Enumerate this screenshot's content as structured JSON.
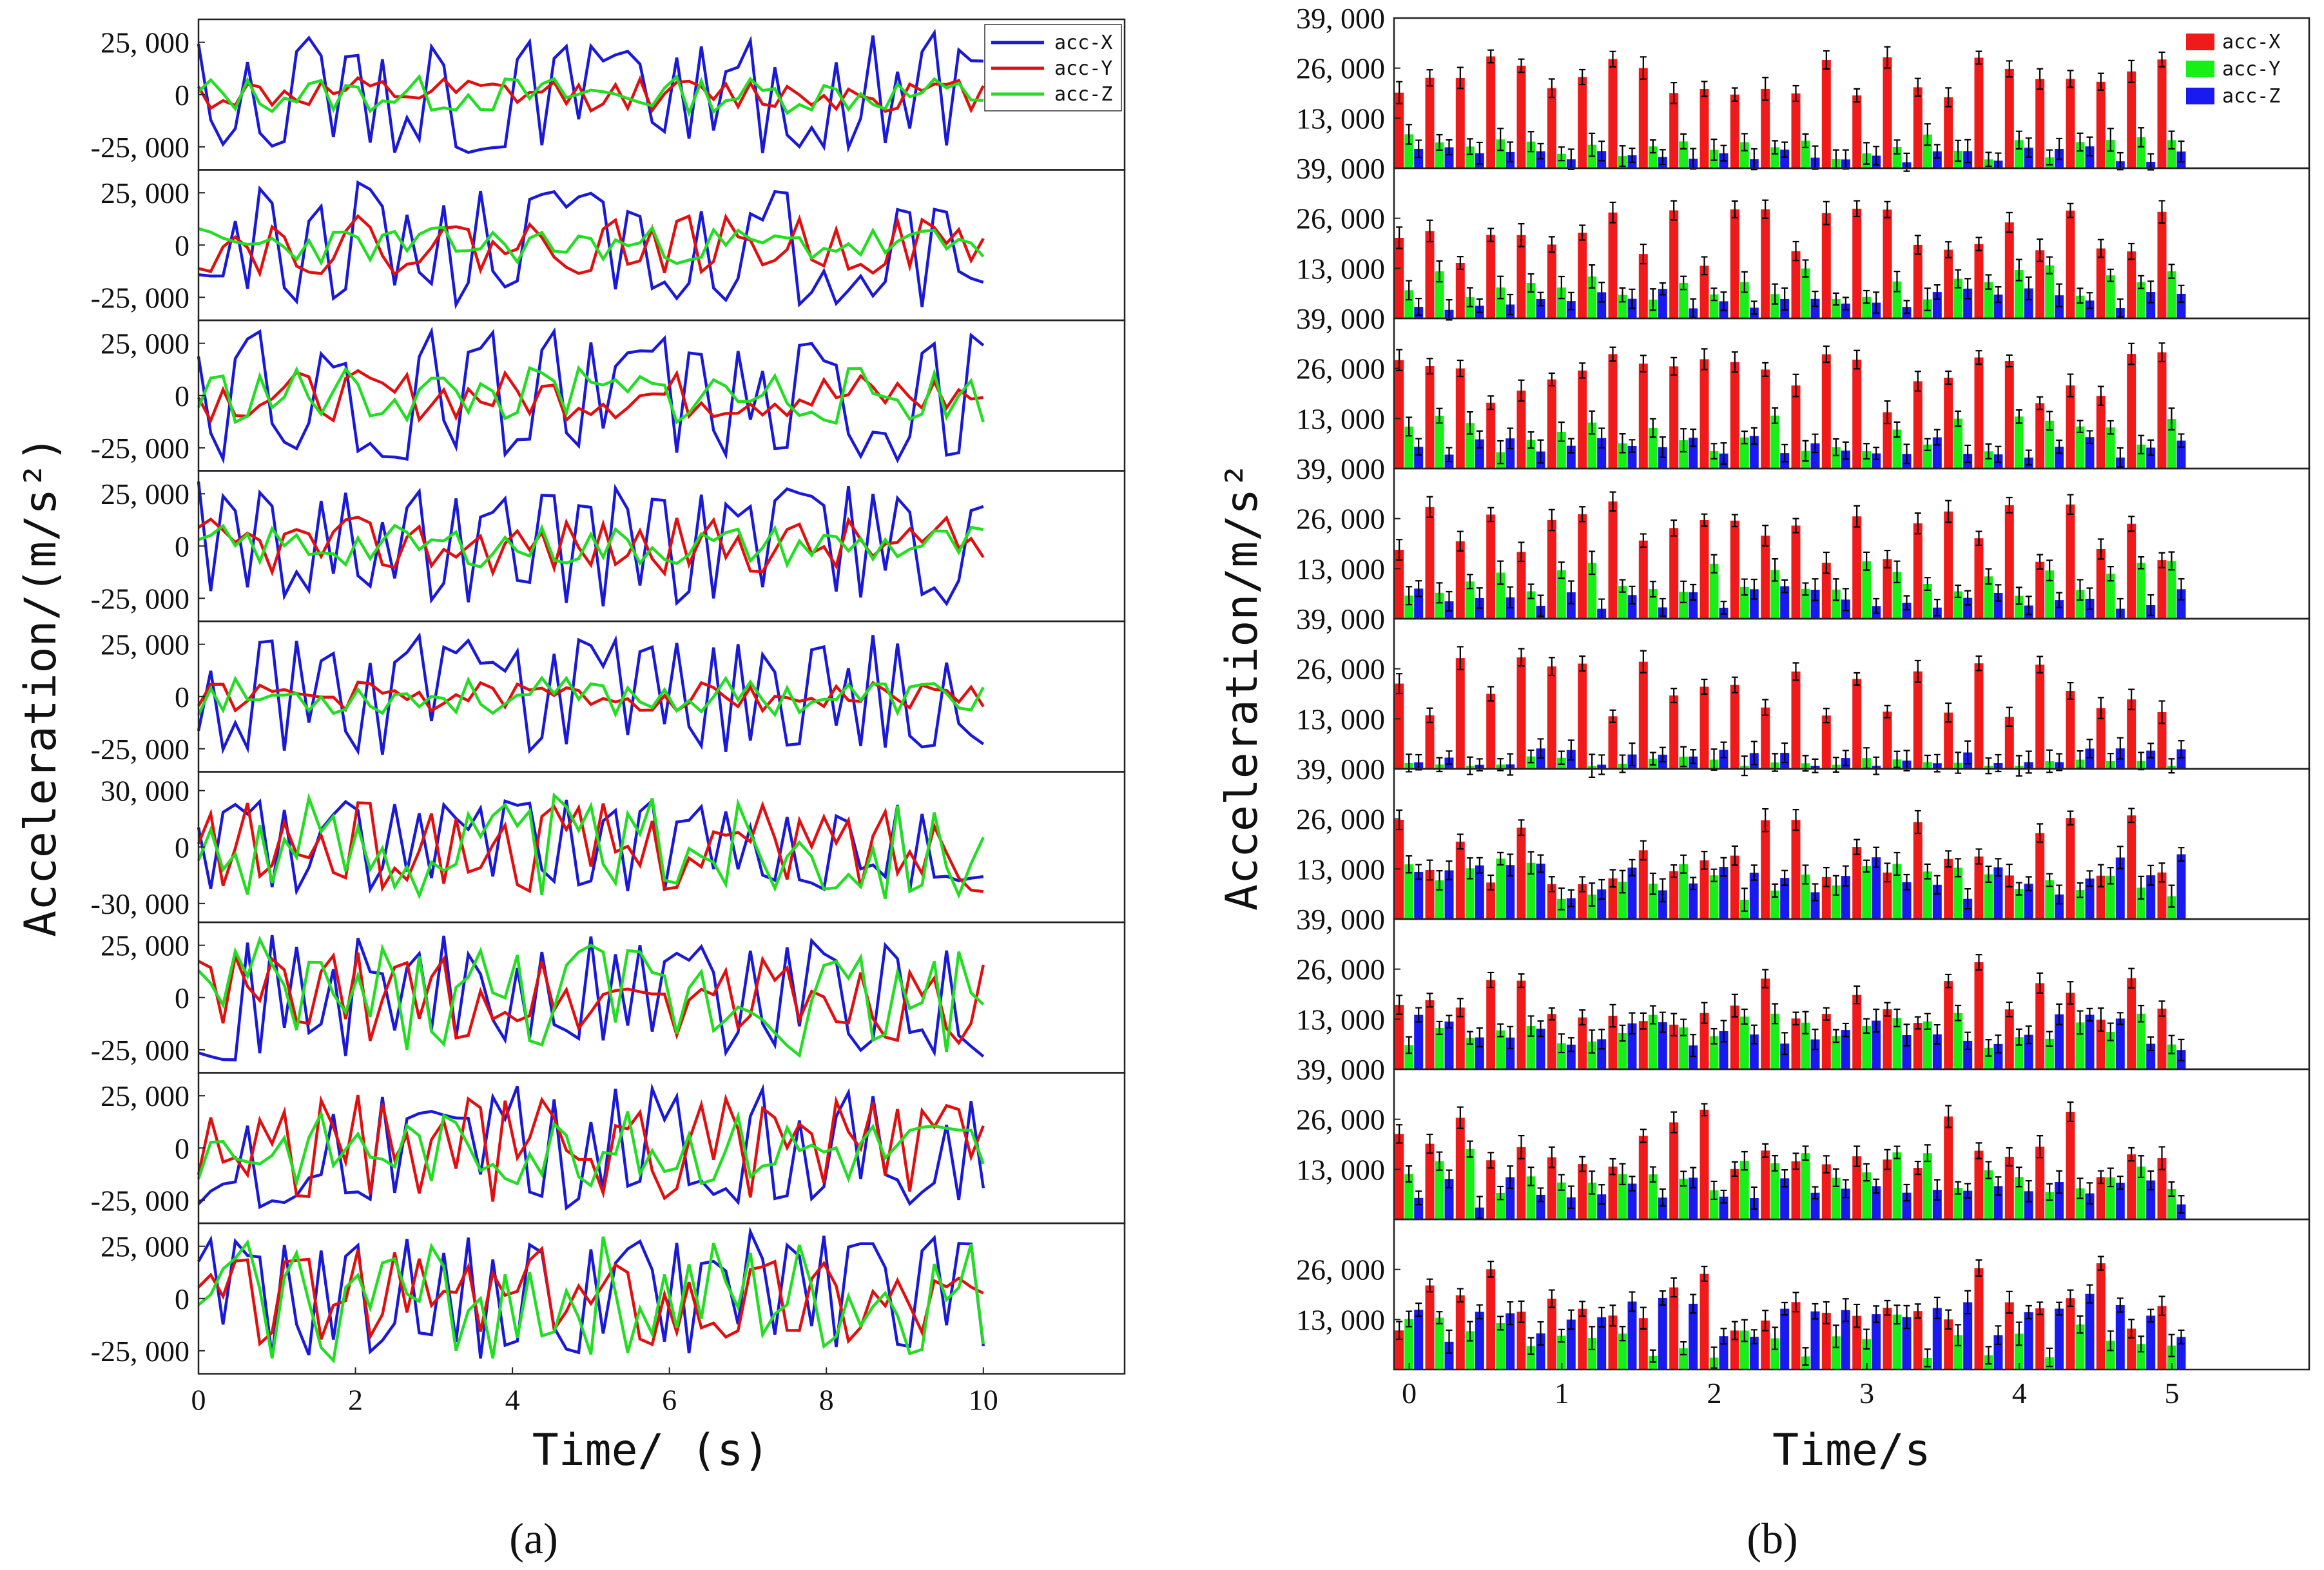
{
  "colors": {
    "acc_x_line": "#1a1ad6",
    "acc_y_line": "#e01010",
    "acc_z_line": "#22dd22",
    "acc_x_bar": "#f01a1a",
    "acc_y_bar": "#18ee18",
    "acc_z_bar": "#1a1af0",
    "axis": "#222222"
  },
  "panel_labels": {
    "a": "(a)",
    "b": "(b)"
  },
  "chart_data": [
    {
      "type": "line",
      "title": "",
      "xlabel": "Time/ (s)",
      "ylabel": "Acceleration/(m/s²)",
      "xlim": [
        0,
        11.8
      ],
      "x_ticks": [
        0,
        2,
        4,
        6,
        8,
        10
      ],
      "x_tick_labels": [
        "0",
        "2",
        "4",
        "6",
        "8",
        "10"
      ],
      "legend": {
        "position": "top-right",
        "entries": [
          "acc-X",
          "acc-Y",
          "acc-Z"
        ]
      },
      "subplot_count": 9,
      "subplots": [
        {
          "ylim": [
            -36000,
            36000
          ],
          "y_ticks": [
            25000,
            0,
            -25000
          ],
          "y_tick_labels": [
            "25, 000",
            "0",
            "-25, 000"
          ],
          "series": [
            {
              "name": "acc-X",
              "amplitude": 30000,
              "seed": 11
            },
            {
              "name": "acc-Y",
              "amplitude": 8000,
              "seed": 12
            },
            {
              "name": "acc-Z",
              "amplitude": 9000,
              "seed": 13
            }
          ]
        },
        {
          "ylim": [
            -36000,
            36000
          ],
          "y_ticks": [
            25000,
            0,
            -25000
          ],
          "y_tick_labels": [
            "25, 000",
            "0",
            "-25, 000"
          ],
          "series": [
            {
              "name": "acc-X",
              "amplitude": 30000,
              "seed": 21
            },
            {
              "name": "acc-Y",
              "amplitude": 14000,
              "seed": 22
            },
            {
              "name": "acc-Z",
              "amplitude": 9000,
              "seed": 23
            }
          ]
        },
        {
          "ylim": [
            -36000,
            36000
          ],
          "y_ticks": [
            25000,
            0,
            -25000
          ],
          "y_tick_labels": [
            "25, 000",
            "0",
            "-25, 000"
          ],
          "series": [
            {
              "name": "acc-X",
              "amplitude": 32000,
              "seed": 31
            },
            {
              "name": "acc-Y",
              "amplitude": 12000,
              "seed": 32
            },
            {
              "name": "acc-Z",
              "amplitude": 14000,
              "seed": 33
            }
          ]
        },
        {
          "ylim": [
            -36000,
            36000
          ],
          "y_ticks": [
            25000,
            0,
            -25000
          ],
          "y_tick_labels": [
            "25, 000",
            "0",
            "-25, 000"
          ],
          "series": [
            {
              "name": "acc-X",
              "amplitude": 32000,
              "seed": 41
            },
            {
              "name": "acc-Y",
              "amplitude": 14000,
              "seed": 42
            },
            {
              "name": "acc-Z",
              "amplitude": 10000,
              "seed": 43
            }
          ]
        },
        {
          "ylim": [
            -36000,
            36000
          ],
          "y_ticks": [
            25000,
            0,
            -25000
          ],
          "y_tick_labels": [
            "25, 000",
            "0",
            "-25, 000"
          ],
          "series": [
            {
              "name": "acc-X",
              "amplitude": 30000,
              "seed": 51
            },
            {
              "name": "acc-Y",
              "amplitude": 7000,
              "seed": 52
            },
            {
              "name": "acc-Z",
              "amplitude": 9000,
              "seed": 53
            }
          ]
        },
        {
          "ylim": [
            -40000,
            40000
          ],
          "y_ticks": [
            30000,
            0,
            -30000
          ],
          "y_tick_labels": [
            "30, 000",
            "0",
            "-30, 000"
          ],
          "series": [
            {
              "name": "acc-X",
              "amplitude": 26000,
              "seed": 61
            },
            {
              "name": "acc-Y",
              "amplitude": 24000,
              "seed": 62
            },
            {
              "name": "acc-Z",
              "amplitude": 28000,
              "seed": 63
            }
          ]
        },
        {
          "ylim": [
            -36000,
            36000
          ],
          "y_ticks": [
            25000,
            0,
            -25000
          ],
          "y_tick_labels": [
            "25, 000",
            "0",
            "-25, 000"
          ],
          "series": [
            {
              "name": "acc-X",
              "amplitude": 30000,
              "seed": 71
            },
            {
              "name": "acc-Y",
              "amplitude": 22000,
              "seed": 72
            },
            {
              "name": "acc-Z",
              "amplitude": 28000,
              "seed": 73
            }
          ]
        },
        {
          "ylim": [
            -36000,
            36000
          ],
          "y_ticks": [
            25000,
            0,
            -25000
          ],
          "y_tick_labels": [
            "25, 000",
            "0",
            "-25, 000"
          ],
          "series": [
            {
              "name": "acc-X",
              "amplitude": 30000,
              "seed": 81
            },
            {
              "name": "acc-Y",
              "amplitude": 26000,
              "seed": 82
            },
            {
              "name": "acc-Z",
              "amplitude": 18000,
              "seed": 83
            }
          ]
        },
        {
          "ylim": [
            -36000,
            36000
          ],
          "y_ticks": [
            25000,
            0,
            -25000
          ],
          "y_tick_labels": [
            "25, 000",
            "0",
            "-25, 000"
          ],
          "series": [
            {
              "name": "acc-X",
              "amplitude": 32000,
              "seed": 91
            },
            {
              "name": "acc-Y",
              "amplitude": 24000,
              "seed": 92
            },
            {
              "name": "acc-Z",
              "amplitude": 30000,
              "seed": 93
            }
          ]
        }
      ]
    },
    {
      "type": "bar",
      "title": "",
      "xlabel": "Time/s",
      "ylabel": "Acceleration/m/s²",
      "xlim": [
        -0.1,
        5.9
      ],
      "x_ticks": [
        0,
        1,
        2,
        3,
        4,
        5
      ],
      "x_tick_labels": [
        "0",
        "1",
        "2",
        "3",
        "4",
        "5"
      ],
      "legend": {
        "position": "top-right",
        "entries": [
          "acc-X",
          "acc-Y",
          "acc-Z"
        ]
      },
      "groups_per_subplot": 26,
      "group_spacing_s": 0.2,
      "subplot_count": 9,
      "subplots": [
        {
          "ylim": [
            0,
            39000
          ],
          "y_ticks": [
            39000,
            26000,
            13000
          ],
          "y_tick_labels": [
            "39, 000",
            "26, 000",
            "13, 000"
          ],
          "series": [
            {
              "name": "acc-X",
              "mean": 24000,
              "spread": 6000,
              "seed": 101
            },
            {
              "name": "acc-Y",
              "mean": 5500,
              "spread": 3500,
              "seed": 102
            },
            {
              "name": "acc-Z",
              "mean": 3500,
              "spread": 2500,
              "seed": 103
            }
          ]
        },
        {
          "ylim": [
            0,
            39000
          ],
          "y_ticks": [
            39000,
            26000,
            13000
          ],
          "y_tick_labels": [
            "39, 000",
            "26, 000",
            "13, 000"
          ],
          "series": [
            {
              "name": "acc-X",
              "mean": 21000,
              "spread": 8000,
              "seed": 111
            },
            {
              "name": "acc-Y",
              "mean": 9000,
              "spread": 5000,
              "seed": 112
            },
            {
              "name": "acc-Z",
              "mean": 5000,
              "spread": 3000,
              "seed": 113
            }
          ]
        },
        {
          "ylim": [
            0,
            39000
          ],
          "y_ticks": [
            39000,
            26000,
            13000
          ],
          "y_tick_labels": [
            "39, 000",
            "26, 000",
            "13, 000"
          ],
          "series": [
            {
              "name": "acc-X",
              "mean": 22500,
              "spread": 8000,
              "seed": 121
            },
            {
              "name": "acc-Y",
              "mean": 9000,
              "spread": 5000,
              "seed": 122
            },
            {
              "name": "acc-Z",
              "mean": 5500,
              "spread": 3000,
              "seed": 123
            }
          ]
        },
        {
          "ylim": [
            0,
            39000
          ],
          "y_ticks": [
            39000,
            26000,
            13000
          ],
          "y_tick_labels": [
            "39, 000",
            "26, 000",
            "13, 000"
          ],
          "series": [
            {
              "name": "acc-X",
              "mean": 22500,
              "spread": 8000,
              "seed": 131
            },
            {
              "name": "acc-Y",
              "mean": 10500,
              "spread": 5000,
              "seed": 132
            },
            {
              "name": "acc-Z",
              "mean": 5500,
              "spread": 3000,
              "seed": 133
            }
          ]
        },
        {
          "ylim": [
            0,
            39000
          ],
          "y_ticks": [
            39000,
            26000,
            13000
          ],
          "y_tick_labels": [
            "39, 000",
            "26, 000",
            "13, 000"
          ],
          "series": [
            {
              "name": "acc-X",
              "mean": 21000,
              "spread": 8000,
              "seed": 141
            },
            {
              "name": "acc-Y",
              "mean": 1800,
              "spread": 1500,
              "seed": 142
            },
            {
              "name": "acc-Z",
              "mean": 3000,
              "spread": 2500,
              "seed": 143
            }
          ]
        },
        {
          "ylim": [
            0,
            39000
          ],
          "y_ticks": [
            39000,
            26000,
            13000
          ],
          "y_tick_labels": [
            "39, 000",
            "26, 000",
            "13, 000"
          ],
          "series": [
            {
              "name": "acc-X",
              "mean": 18000,
              "spread": 9000,
              "seed": 151
            },
            {
              "name": "acc-Y",
              "mean": 11000,
              "spread": 6000,
              "seed": 152
            },
            {
              "name": "acc-Z",
              "mean": 11000,
              "spread": 6000,
              "seed": 153
            }
          ]
        },
        {
          "ylim": [
            0,
            39000
          ],
          "y_ticks": [
            39000,
            26000,
            13000
          ],
          "y_tick_labels": [
            "39, 000",
            "26, 000",
            "13, 000"
          ],
          "series": [
            {
              "name": "acc-X",
              "mean": 20500,
              "spread": 9000,
              "seed": 161
            },
            {
              "name": "acc-Y",
              "mean": 10000,
              "spread": 5000,
              "seed": 162
            },
            {
              "name": "acc-Z",
              "mean": 9500,
              "spread": 5000,
              "seed": 163
            }
          ]
        },
        {
          "ylim": [
            0,
            39000
          ],
          "y_ticks": [
            39000,
            26000,
            13000
          ],
          "y_tick_labels": [
            "39, 000",
            "26, 000",
            "13, 000"
          ],
          "series": [
            {
              "name": "acc-X",
              "mean": 19500,
              "spread": 9000,
              "seed": 171
            },
            {
              "name": "acc-Y",
              "mean": 12000,
              "spread": 7000,
              "seed": 172
            },
            {
              "name": "acc-Z",
              "mean": 7000,
              "spread": 4000,
              "seed": 173
            }
          ]
        },
        {
          "ylim": [
            0,
            39000
          ],
          "y_ticks": [
            26000,
            13000
          ],
          "y_tick_labels": [
            "26, 000",
            "13, 000"
          ],
          "series": [
            {
              "name": "acc-X",
              "mean": 19000,
              "spread": 9000,
              "seed": 181
            },
            {
              "name": "acc-Y",
              "mean": 9000,
              "spread": 6000,
              "seed": 182
            },
            {
              "name": "acc-Z",
              "mean": 13000,
              "spread": 7000,
              "seed": 183
            }
          ]
        }
      ]
    }
  ]
}
